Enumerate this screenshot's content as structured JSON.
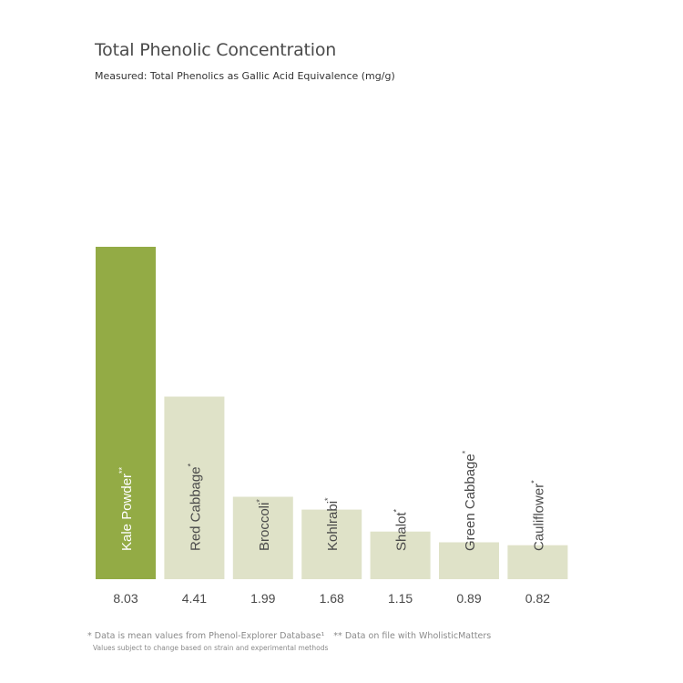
{
  "chart_data": {
    "type": "bar",
    "title": "Total Phenolic Concentration",
    "subtitle": "Measured: Total Phenolics as Gallic Acid Equivalence (mg/g)",
    "categories": [
      "Kale Powder",
      "Red Cabbage",
      "Broccoli",
      "Kohlrabi",
      "Shalot",
      "Green Cabbage",
      "Cauliflower"
    ],
    "markers": [
      "**",
      "*",
      "*",
      "*",
      "*",
      "*",
      "*"
    ],
    "values": [
      8.03,
      4.41,
      1.99,
      1.68,
      1.15,
      0.89,
      0.82
    ],
    "value_labels": [
      "8.03",
      "4.41",
      "1.99",
      "1.68",
      "1.15",
      "0.89",
      "0.82"
    ],
    "highlight_index": 0,
    "colors": {
      "highlight": "#93ab45",
      "bar": "#dfe2c8",
      "text_on_highlight": "#ffffff",
      "text_on_bar": "#4a4a4a"
    },
    "ylim": [
      0,
      8.03
    ],
    "grid": false,
    "legend": "none"
  },
  "footnotes": {
    "line1_a": "* Data is mean values from Phenol-Explorer Database¹",
    "line1_b": "** Data on file with WholisticMatters",
    "line2": "Values subject to change based on strain and experimental methods"
  }
}
